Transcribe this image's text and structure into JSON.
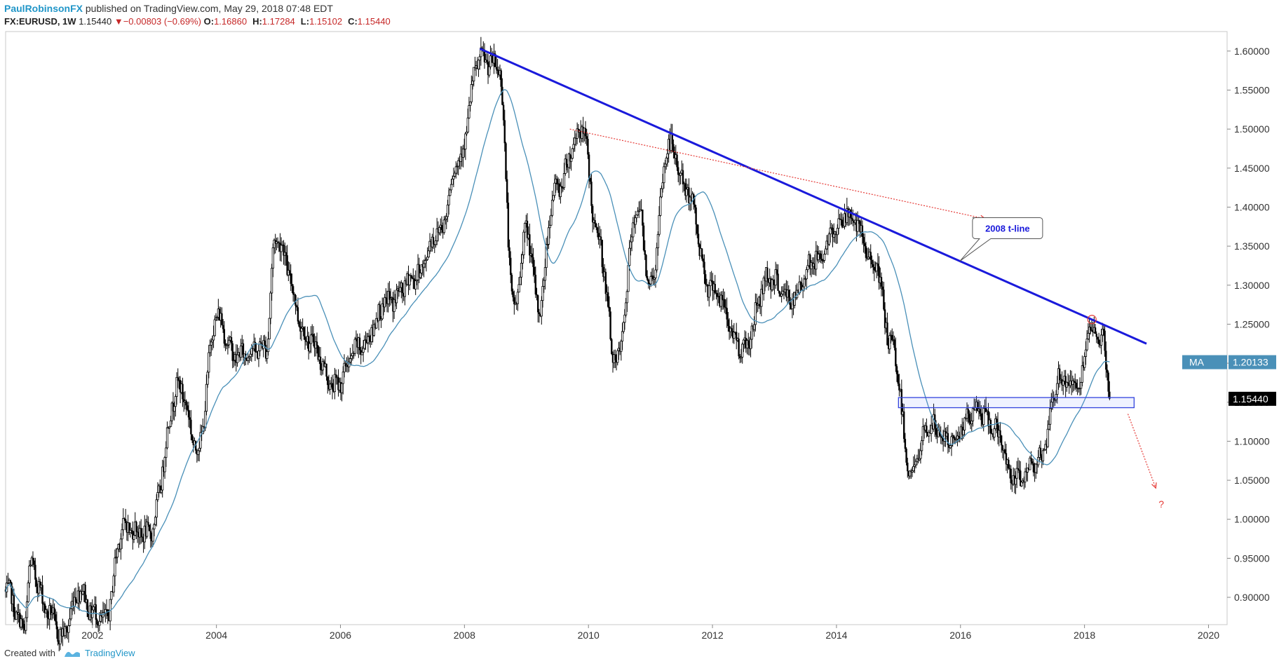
{
  "header": {
    "author": "PaulRobinsonFX",
    "published": "published on TradingView.com, May 29, 2018 07:48 EDT"
  },
  "quote": {
    "symbol": "FX:EURUSD, 1W",
    "last": "1.15440",
    "change": "−0.00803 (−0.69%)",
    "open_label": "O:",
    "open": "1.16860",
    "high_label": "H:",
    "high": "1.17284",
    "low_label": "L:",
    "low": "1.15102",
    "close_label": "C:",
    "close": "1.15440"
  },
  "footer": {
    "created_with": "Created with",
    "brand": "TradingView"
  },
  "chart_data": {
    "type": "candlestick",
    "symbol": "FX:EURUSD",
    "interval": "1W",
    "ylim": [
      0.865,
      1.625
    ],
    "xlim": [
      2000.6,
      2020.3
    ],
    "x_ticks": [
      "2002",
      "2004",
      "2006",
      "2008",
      "2010",
      "2012",
      "2014",
      "2016",
      "2018",
      "2020"
    ],
    "x_tick_values": [
      2002,
      2004,
      2006,
      2008,
      2010,
      2012,
      2014,
      2016,
      2018,
      2020
    ],
    "y_ticks": [
      "0.90000",
      "0.95000",
      "1.00000",
      "1.05000",
      "1.10000",
      "1.15000",
      "1.20000",
      "1.25000",
      "1.30000",
      "1.35000",
      "1.40000",
      "1.45000",
      "1.50000",
      "1.55000",
      "1.60000"
    ],
    "y_tick_values": [
      0.9,
      0.95,
      1.0,
      1.05,
      1.1,
      1.15,
      1.2,
      1.25,
      1.3,
      1.35,
      1.4,
      1.45,
      1.5,
      1.55,
      1.6
    ],
    "price_anchors": [
      [
        2000.6,
        0.91
      ],
      [
        2000.9,
        0.86
      ],
      [
        2001.0,
        0.94
      ],
      [
        2001.3,
        0.88
      ],
      [
        2001.5,
        0.85
      ],
      [
        2001.8,
        0.91
      ],
      [
        2002.0,
        0.88
      ],
      [
        2002.2,
        0.87
      ],
      [
        2002.5,
        0.99
      ],
      [
        2002.9,
        0.98
      ],
      [
        2003.4,
        1.17
      ],
      [
        2003.7,
        1.09
      ],
      [
        2004.0,
        1.26
      ],
      [
        2004.3,
        1.21
      ],
      [
        2004.8,
        1.22
      ],
      [
        2004.95,
        1.36
      ],
      [
        2005.5,
        1.23
      ],
      [
        2005.9,
        1.17
      ],
      [
        2006.3,
        1.22
      ],
      [
        2006.8,
        1.28
      ],
      [
        2007.2,
        1.31
      ],
      [
        2007.6,
        1.37
      ],
      [
        2007.9,
        1.46
      ],
      [
        2008.25,
        1.59
      ],
      [
        2008.55,
        1.58
      ],
      [
        2008.8,
        1.27
      ],
      [
        2009.0,
        1.37
      ],
      [
        2009.2,
        1.27
      ],
      [
        2009.45,
        1.42
      ],
      [
        2009.9,
        1.5
      ],
      [
        2010.15,
        1.36
      ],
      [
        2010.45,
        1.2
      ],
      [
        2010.8,
        1.4
      ],
      [
        2011.0,
        1.3
      ],
      [
        2011.3,
        1.48
      ],
      [
        2011.6,
        1.42
      ],
      [
        2011.95,
        1.3
      ],
      [
        2012.5,
        1.22
      ],
      [
        2012.9,
        1.31
      ],
      [
        2013.3,
        1.28
      ],
      [
        2013.6,
        1.33
      ],
      [
        2014.2,
        1.39
      ],
      [
        2014.6,
        1.33
      ],
      [
        2014.9,
        1.22
      ],
      [
        2015.2,
        1.06
      ],
      [
        2015.5,
        1.12
      ],
      [
        2015.8,
        1.1
      ],
      [
        2016.3,
        1.14
      ],
      [
        2016.5,
        1.12
      ],
      [
        2016.9,
        1.05
      ],
      [
        2017.3,
        1.08
      ],
      [
        2017.6,
        1.18
      ],
      [
        2017.9,
        1.17
      ],
      [
        2018.1,
        1.24
      ],
      [
        2018.3,
        1.23
      ],
      [
        2018.42,
        1.1544
      ]
    ],
    "moving_average": {
      "label": "MA",
      "current": "1.20133",
      "value": 1.20133,
      "color": "#4a90b8"
    },
    "last_price": {
      "label": "1.15440",
      "value": 1.1544
    },
    "trendline": {
      "label": "2008 t-line",
      "from": [
        2008.25,
        1.603
      ],
      "to": [
        2019.0,
        1.225
      ],
      "color": "#1a1adb"
    },
    "support_zone": {
      "from_x": 2015.0,
      "to_x": 2018.8,
      "low": 1.143,
      "high": 1.156
    },
    "annotations": {
      "downtrend_arrow": {
        "from": [
          2009.7,
          1.5
        ],
        "to": [
          2016.4,
          1.385
        ]
      },
      "projection_arrow": {
        "from": [
          2018.7,
          1.135
        ],
        "to": [
          2019.15,
          1.04
        ]
      },
      "question_mark": "?",
      "high_marker": [
        2018.12,
        1.256
      ]
    },
    "colors": {
      "candle": "#000000",
      "ma": "#4a90b8",
      "trendline": "#1a1adb",
      "annotation": "#e53935"
    }
  }
}
